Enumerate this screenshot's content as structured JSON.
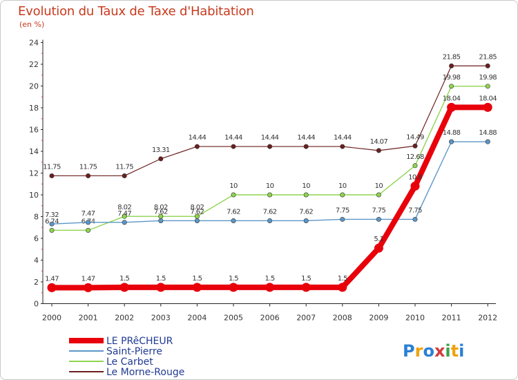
{
  "chart_data": {
    "type": "line",
    "title": "Evolution du Taux de Taxe d'Habitation",
    "subtitle": "(en %)",
    "categories": [
      "2000",
      "2001",
      "2002",
      "2003",
      "2004",
      "2005",
      "2006",
      "2007",
      "2008",
      "2009",
      "2010",
      "2011",
      "2012"
    ],
    "ylim": [
      0,
      24
    ],
    "yticks": [
      0,
      2,
      4,
      6,
      8,
      10,
      12,
      14,
      16,
      18,
      20,
      22,
      24
    ],
    "grid": false,
    "legend_position": "bottom-left",
    "series": [
      {
        "name": "Le Morne-Rouge",
        "color": "#6b1f1f",
        "width": 1.2,
        "dot": 3.2,
        "values": [
          11.75,
          11.75,
          11.75,
          13.31,
          14.44,
          14.44,
          14.44,
          14.44,
          14.44,
          14.07,
          14.49,
          21.85,
          21.85
        ],
        "labels": [
          "11.75",
          "11.75",
          "11.75",
          "13.31",
          "14.44",
          "14.44",
          "14.44",
          "14.44",
          "14.44",
          "14.07",
          "14.49",
          "21.85",
          "21.85"
        ]
      },
      {
        "name": "Le Carbet",
        "color": "#8ed44f",
        "width": 1.4,
        "dot": 3.2,
        "values": [
          6.74,
          6.74,
          8.02,
          8.02,
          8.02,
          10,
          10,
          10,
          10,
          10,
          12.68,
          19.98,
          19.98
        ],
        "labels": [
          "6.74",
          "6.74",
          "8.02",
          "8.02",
          "8.02",
          "10",
          "10",
          "10",
          "10",
          "10",
          "12.68",
          "19.98",
          "19.98"
        ]
      },
      {
        "name": "Saint-Pierre",
        "color": "#5b96c8",
        "width": 1.4,
        "dot": 3.2,
        "values": [
          7.32,
          7.47,
          7.47,
          7.62,
          7.62,
          7.62,
          7.62,
          7.62,
          7.75,
          7.75,
          7.75,
          14.88,
          14.88
        ],
        "labels": [
          "7.32",
          "7.47",
          "7.47",
          "7.62",
          "7.62",
          "7.62",
          "7.62",
          "7.62",
          "7.75",
          "7.75",
          "7.75",
          "14.88",
          "14.88"
        ]
      },
      {
        "name": "LE PRêCHEUR",
        "color": "#e8000b",
        "width": 8,
        "dot": 6.5,
        "values": [
          1.47,
          1.47,
          1.5,
          1.5,
          1.5,
          1.5,
          1.5,
          1.5,
          1.5,
          5.1,
          10.8,
          18.04,
          18.04
        ],
        "labels": [
          "1.47",
          "1.47",
          "1.5",
          "1.5",
          "1.5",
          "1.5",
          "1.5",
          "1.5",
          "1.5",
          "5.1",
          "10.8",
          "18.04",
          "18.04"
        ]
      }
    ],
    "legend": [
      {
        "name": "LE PRêCHEUR",
        "color": "#e8000b",
        "width": 8
      },
      {
        "name": "Saint-Pierre",
        "color": "#5b96c8",
        "width": 2
      },
      {
        "name": "Le Carbet",
        "color": "#8ed44f",
        "width": 2
      },
      {
        "name": "Le Morne-Rouge",
        "color": "#6b1f1f",
        "width": 2
      }
    ]
  },
  "logo": {
    "letters": [
      "P",
      "r",
      "o",
      "x",
      "i",
      "t",
      "i"
    ],
    "colors": [
      "#2a7fd4",
      "#f0a10a",
      "#2a7fd4",
      "#d23b3b",
      "#3aa34a",
      "#f0a10a",
      "#2a7fd4"
    ]
  }
}
